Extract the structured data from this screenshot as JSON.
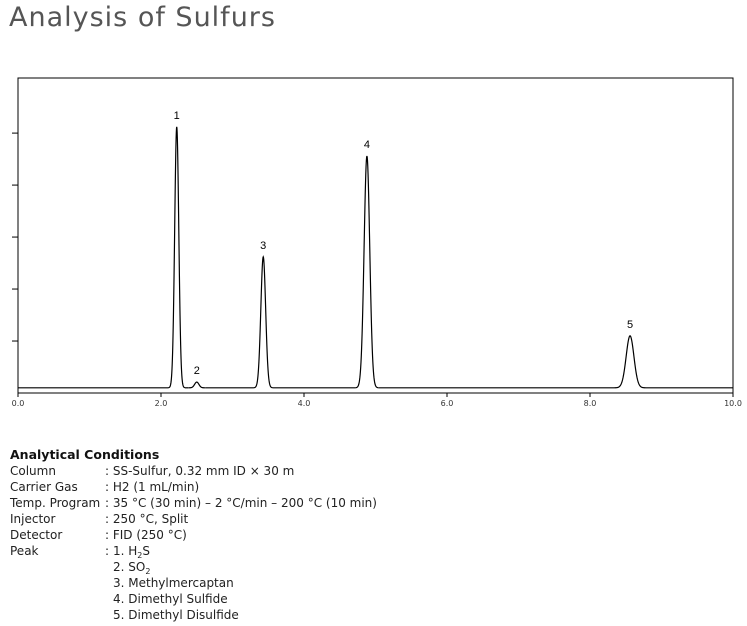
{
  "title": "Analysis of Sulfurs",
  "chart_data": {
    "type": "chromatogram",
    "baseline": 0.1,
    "peaks": [
      {
        "label": "1",
        "time": 2.22,
        "height": 5.12
      },
      {
        "label": "2",
        "time": 2.5,
        "height": 0.21
      },
      {
        "label": "3",
        "time": 3.43,
        "height": 2.62
      },
      {
        "label": "4",
        "time": 4.88,
        "height": 4.56
      },
      {
        "label": "5",
        "time": 8.56,
        "height": 1.1
      }
    ],
    "xlim": [
      0,
      10
    ],
    "xticks": [
      {
        "value": 0,
        "label": "0.0"
      },
      {
        "value": 2,
        "label": "2.0"
      },
      {
        "value": 4,
        "label": "4.0"
      },
      {
        "value": 6,
        "label": "6.0"
      },
      {
        "value": 8,
        "label": "8.0"
      },
      {
        "value": 10,
        "label": "10.0"
      }
    ],
    "ylim": [
      0,
      6.06
    ],
    "yticks": [
      1,
      2,
      3,
      4,
      5
    ],
    "color": "#000000"
  },
  "conditions": {
    "heading": "Analytical Conditions",
    "rows": [
      [
        "Column",
        ": SS-Sulfur, 0.32 mm ID × 30 m"
      ],
      [
        "Carrier Gas",
        ": H2 (1 mL/min)"
      ],
      [
        "Temp. Program",
        ": 35 °C (30 min) – 2 °C/min – 200 °C (10 min)"
      ],
      [
        "Injector",
        ": 250 °C, Split"
      ],
      [
        "Detector",
        ": FID (250 °C)"
      ]
    ],
    "peak_label": "Peak",
    "peak_colon": ":",
    "peak_items": [
      [
        "1. H",
        "2",
        "S"
      ],
      [
        "2. SO",
        "2",
        ""
      ],
      [
        "3. Methylmercaptan",
        "",
        ""
      ],
      [
        "4. Dimethyl Sulfide",
        "",
        ""
      ],
      [
        "5. Dimethyl Disulfide",
        "",
        ""
      ]
    ]
  }
}
